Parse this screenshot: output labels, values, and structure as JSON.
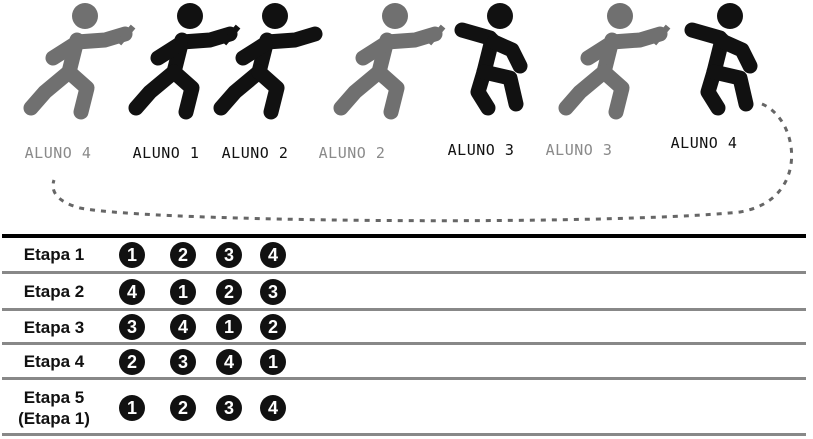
{
  "runners": [
    {
      "name": "ALUNO 4",
      "tone": "gray"
    },
    {
      "name": "ALUNO 1",
      "tone": "black"
    },
    {
      "name": "ALUNO 2",
      "tone": "black"
    },
    {
      "name": "ALUNO 2",
      "tone": "gray"
    },
    {
      "name": "ALUNO 3",
      "tone": "black"
    },
    {
      "name": "ALUNO 3",
      "tone": "gray"
    },
    {
      "name": "ALUNO 4",
      "tone": "black"
    }
  ],
  "stages": [
    {
      "label": [
        "Etapa 1"
      ],
      "order": [
        "1",
        "2",
        "3",
        "4"
      ]
    },
    {
      "label": [
        "Etapa 2"
      ],
      "order": [
        "4",
        "1",
        "2",
        "3"
      ]
    },
    {
      "label": [
        "Etapa 3"
      ],
      "order": [
        "3",
        "4",
        "1",
        "2"
      ]
    },
    {
      "label": [
        "Etapa 4"
      ],
      "order": [
        "2",
        "3",
        "4",
        "1"
      ]
    },
    {
      "label": [
        "Etapa 5",
        "(Etapa 1)"
      ],
      "order": [
        "1",
        "2",
        "3",
        "4"
      ]
    }
  ],
  "colors": {
    "gray": "#707070",
    "black": "#111111",
    "rule": "#888888",
    "loop": "#666666"
  }
}
